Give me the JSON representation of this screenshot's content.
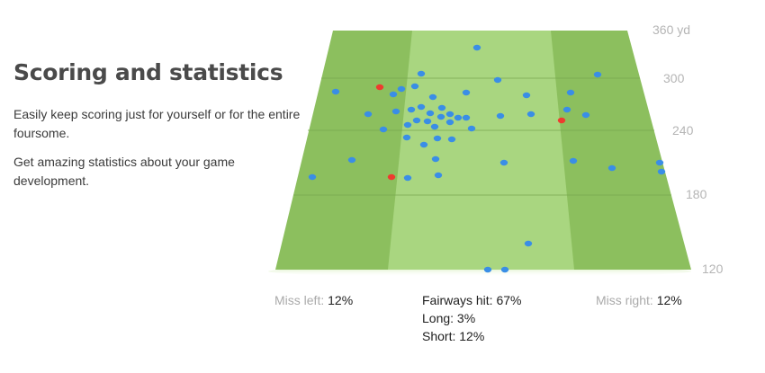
{
  "intro": {
    "title": "Scoring and statistics",
    "paragraph1": "Easily keep scoring just for yourself or for the entire foursome.",
    "paragraph2": "Get amazing statistics about your game development."
  },
  "yardage_labels": [
    "360 yd",
    "300",
    "240",
    "180",
    "120"
  ],
  "stats": {
    "miss_left_label": "Miss left:",
    "miss_left_value": "12%",
    "fairways_hit": "Fairways hit: 67%",
    "long": "Long: 3%",
    "short": "Short: 12%",
    "miss_right_label": "Miss right:",
    "miss_right_value": "12%"
  },
  "colors": {
    "rough": "#8cbf5e",
    "fairway": "#a9d680",
    "shot_normal": "#3a8ee6",
    "shot_highlight": "#ee3b2f"
  }
}
